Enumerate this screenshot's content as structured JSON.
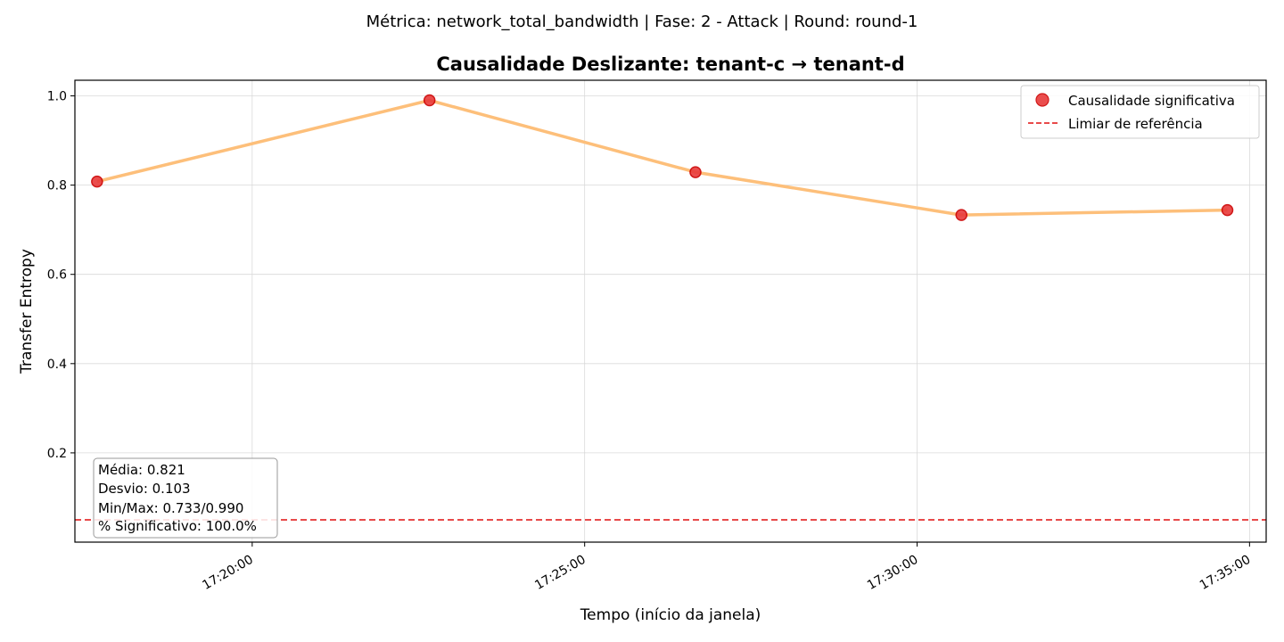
{
  "chart_data": {
    "type": "line",
    "suptitle": "Métrica: network_total_bandwidth | Fase: 2 - Attack | Round: round-1",
    "title": "Causalidade Deslizante: tenant-c → tenant-d",
    "xlabel": "Tempo (início da janela)",
    "ylabel": "Transfer Entropy",
    "x": [
      "17:17:40",
      "17:22:40",
      "17:26:40",
      "17:30:40",
      "17:34:40"
    ],
    "values": [
      0.808,
      0.99,
      0.829,
      0.733,
      0.744
    ],
    "xlim": [
      "17:17:20",
      "17:35:15"
    ],
    "ylim": [
      0.0,
      1.035
    ],
    "x_ticks": [
      "17:20:00",
      "17:25:00",
      "17:30:00",
      "17:35:00"
    ],
    "y_ticks": [
      0.2,
      0.4,
      0.6,
      0.8,
      1.0
    ],
    "threshold": 0.05,
    "grid": true,
    "legend_position": "top-right",
    "legend": [
      {
        "label": "Causalidade significativa",
        "kind": "marker"
      },
      {
        "label": "Limiar de referência",
        "kind": "dashed-line"
      }
    ],
    "stats": [
      "Média: 0.821",
      "Desvio: 0.103",
      "Min/Max: 0.733/0.990",
      "% Significativo: 100.0%"
    ],
    "colors": {
      "line": "#fdbf7a",
      "marker": "#e83a3a",
      "marker_edge": "#cc0000",
      "threshold": "#e84a4a",
      "grid": "#d9d9d9"
    }
  }
}
